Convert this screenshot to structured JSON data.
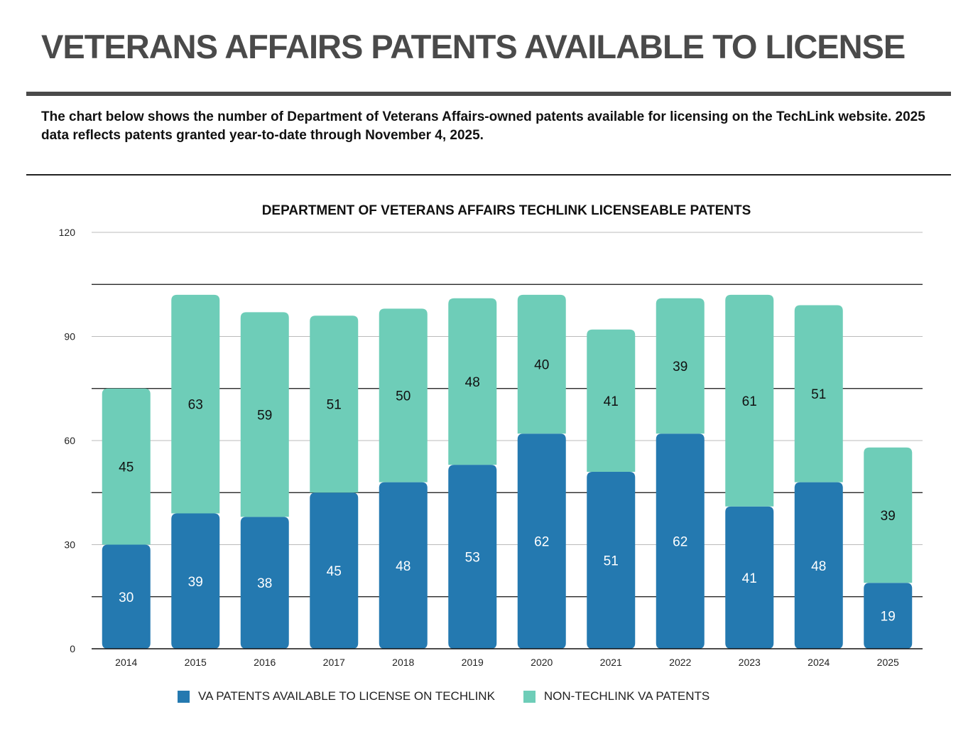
{
  "header": {
    "title": "VETERANS AFFAIRS PATENTS AVAILABLE TO LICENSE",
    "description": "The chart below shows the number of Department of Veterans Affairs-owned patents available for licensing on the TechLink website.  2025 data reflects patents granted year-to-date through November 4, 2025."
  },
  "chart_data": {
    "type": "bar",
    "stacked": true,
    "title": "DEPARTMENT OF VETERANS AFFAIRS TECHLINK LICENSEABLE PATENTS",
    "categories": [
      "2014",
      "2015",
      "2016",
      "2017",
      "2018",
      "2019",
      "2020",
      "2021",
      "2022",
      "2023",
      "2024",
      "2025"
    ],
    "series": [
      {
        "name": "VA PATENTS AVAILABLE TO LICENSE ON TECHLINK",
        "color": "#2479b0",
        "values": [
          30,
          39,
          38,
          45,
          48,
          53,
          62,
          51,
          62,
          41,
          48,
          19
        ]
      },
      {
        "name": "NON-TECHLINK VA PATENTS",
        "color": "#6ecdb8",
        "values": [
          45,
          63,
          59,
          51,
          50,
          48,
          40,
          41,
          39,
          61,
          51,
          39
        ]
      }
    ],
    "ylim": [
      0,
      120
    ],
    "yticks": [
      "0",
      "30",
      "60",
      "90",
      "120"
    ],
    "grid": true,
    "legend": "bottom"
  }
}
